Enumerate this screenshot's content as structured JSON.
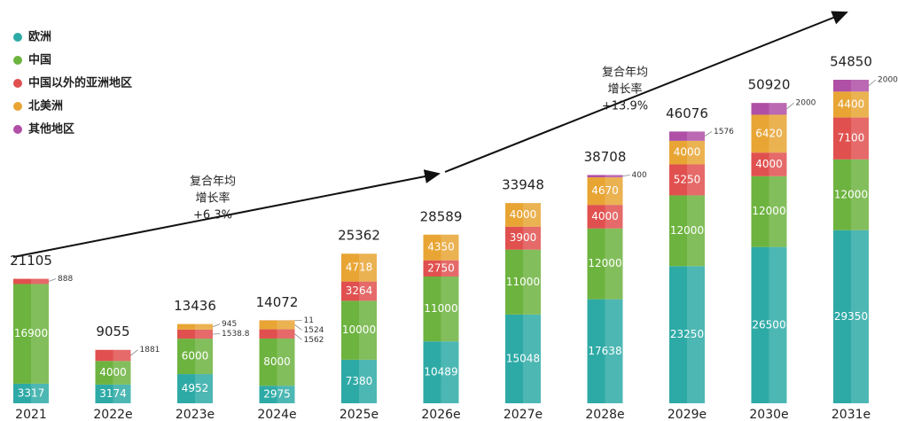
{
  "chart_data": {
    "type": "stacked-bar",
    "categories": [
      "2021",
      "2022e",
      "2023e",
      "2024e",
      "2025e",
      "2026e",
      "2027e",
      "2028e",
      "2029e",
      "2030e",
      "2031e"
    ],
    "series": [
      {
        "name": "欧洲",
        "color": "#2eaaa6",
        "values": [
          3317,
          3174,
          4952,
          2975,
          7380,
          10489,
          15048,
          17638,
          23250,
          26500,
          29350
        ]
      },
      {
        "name": "中国",
        "color": "#6db33f",
        "values": [
          16900,
          4000,
          6000,
          8000,
          10000,
          11000,
          11000,
          12000,
          12000,
          12000,
          12000
        ]
      },
      {
        "name": "中国以外的亚洲地区",
        "color": "#e0504f",
        "values": [
          888,
          1881,
          1538.8,
          1562,
          3264,
          2750,
          3900,
          4000,
          5250,
          4000,
          7100
        ]
      },
      {
        "name": "北美洲",
        "color": "#e8a534",
        "values": [
          null,
          null,
          945,
          1524,
          4718,
          4350,
          4000,
          4670,
          4000,
          6420,
          4400
        ]
      },
      {
        "name": "其他地区",
        "color": "#b04fa6",
        "values": [
          null,
          null,
          null,
          11,
          null,
          null,
          null,
          400,
          1576,
          2000,
          2000
        ]
      }
    ],
    "totals": [
      21105,
      9055,
      13436,
      14072,
      25362,
      28589,
      33948,
      38708,
      46076,
      50920,
      54850
    ],
    "annotations": [
      {
        "lines": [
          "复合年均",
          "增长率",
          "+6.3%"
        ]
      },
      {
        "lines": [
          "复合年均",
          "增长率",
          "+13.9%"
        ]
      }
    ]
  }
}
